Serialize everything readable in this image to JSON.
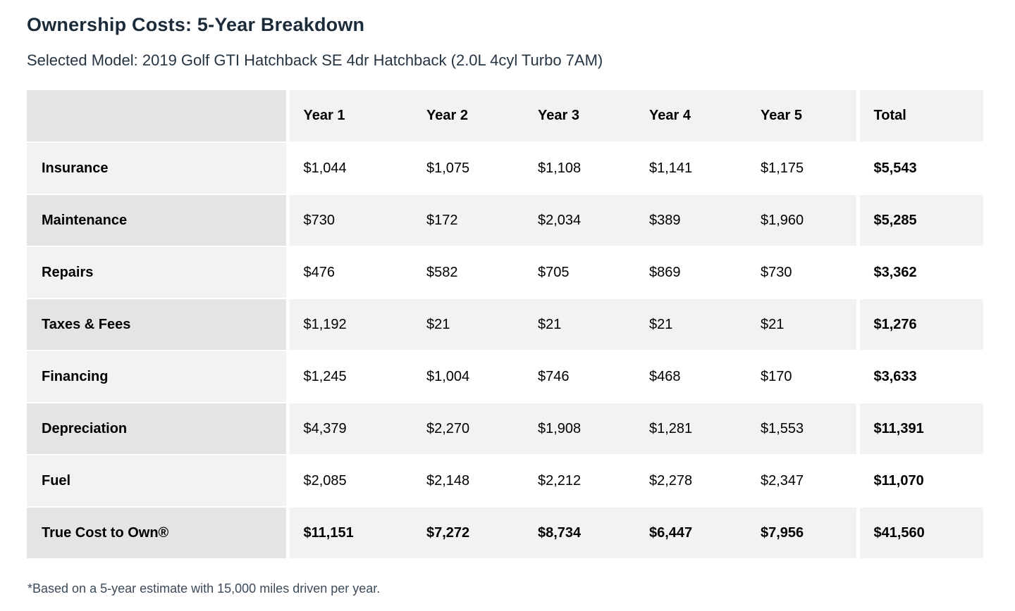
{
  "page": {
    "title": "Ownership Costs: 5-Year Breakdown",
    "subtitle": "Selected Model: 2019 Golf GTI Hatchback SE 4dr Hatchback (2.0L 4cyl Turbo 7AM)",
    "footnote": "*Based on a 5-year estimate with 15,000 miles driven per year."
  },
  "table": {
    "columns": [
      "",
      "Year 1",
      "Year 2",
      "Year 3",
      "Year 4",
      "Year 5",
      "Total"
    ],
    "rows": [
      {
        "label": "Insurance",
        "values": [
          "$1,044",
          "$1,075",
          "$1,108",
          "$1,141",
          "$1,175"
        ],
        "total": "$5,543",
        "emphasis": false
      },
      {
        "label": "Maintenance",
        "values": [
          "$730",
          "$172",
          "$2,034",
          "$389",
          "$1,960"
        ],
        "total": "$5,285",
        "emphasis": false
      },
      {
        "label": "Repairs",
        "values": [
          "$476",
          "$582",
          "$705",
          "$869",
          "$730"
        ],
        "total": "$3,362",
        "emphasis": false
      },
      {
        "label": "Taxes & Fees",
        "values": [
          "$1,192",
          "$21",
          "$21",
          "$21",
          "$21"
        ],
        "total": "$1,276",
        "emphasis": false
      },
      {
        "label": "Financing",
        "values": [
          "$1,245",
          "$1,004",
          "$746",
          "$468",
          "$170"
        ],
        "total": "$3,633",
        "emphasis": false
      },
      {
        "label": "Depreciation",
        "values": [
          "$4,379",
          "$2,270",
          "$1,908",
          "$1,281",
          "$1,553"
        ],
        "total": "$11,391",
        "emphasis": false
      },
      {
        "label": "Fuel",
        "values": [
          "$2,085",
          "$2,148",
          "$2,212",
          "$2,278",
          "$2,347"
        ],
        "total": "$11,070",
        "emphasis": false
      },
      {
        "label": "True Cost to Own®",
        "values": [
          "$11,151",
          "$7,272",
          "$8,734",
          "$6,447",
          "$7,956"
        ],
        "total": "$41,560",
        "emphasis": true
      }
    ]
  },
  "colors": {
    "title_text": "#1c2b3a",
    "subtitle_text": "#263544",
    "footnote_text": "#3c4a59",
    "table_text": "#000000",
    "stripe_dark": "#e4e4e4",
    "stripe_light": "#f2f2f2",
    "row_white": "#ffffff"
  }
}
